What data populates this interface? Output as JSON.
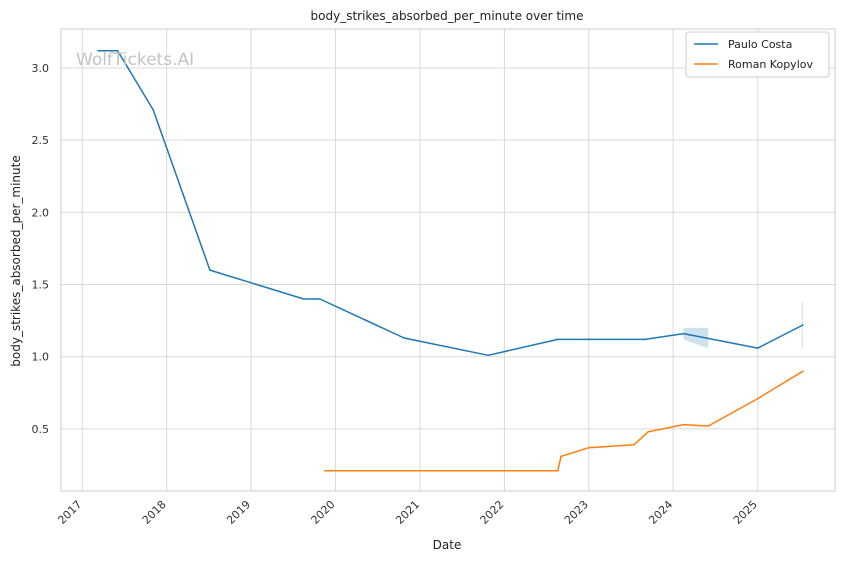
{
  "chart_data": {
    "type": "line",
    "title": "body_strikes_absorbed_per_minute over time",
    "xlabel": "Date",
    "ylabel": "body_strikes_absorbed_per_minute",
    "watermark": "WolfTickets.AI",
    "x_ticks": [
      "2017",
      "2018",
      "2019",
      "2020",
      "2021",
      "2022",
      "2023",
      "2024",
      "2025"
    ],
    "y_ticks": [
      "0.5",
      "1.0",
      "1.5",
      "2.0",
      "2.5",
      "3.0"
    ],
    "xlim": [
      "2016-10-01",
      "2025-12-01"
    ],
    "ylim": [
      0.07,
      3.27
    ],
    "grid": true,
    "legend_position": "top-right",
    "series": [
      {
        "name": "Paulo Costa",
        "color": "#1f77b4",
        "points": [
          [
            "2017-03-11",
            3.12
          ],
          [
            "2017-06-03",
            3.12
          ],
          [
            "2017-11-04",
            2.71
          ],
          [
            "2018-07-07",
            1.6
          ],
          [
            "2019-08-17",
            1.4
          ],
          [
            "2019-10-26",
            1.4
          ],
          [
            "2020-10-24",
            1.13
          ],
          [
            "2021-10-23",
            1.01
          ],
          [
            "2022-08-20",
            1.12
          ],
          [
            "2023-01-01",
            1.12
          ],
          [
            "2023-09-01",
            1.12
          ],
          [
            "2024-02-15",
            1.16
          ],
          [
            "2025-01-01",
            1.06
          ],
          [
            "2025-07-15",
            1.22
          ]
        ],
        "bands": [
          {
            "x": [
              "2024-02-15",
              "2024-06-01"
            ],
            "lower": [
              1.12,
              1.06
            ],
            "upper": [
              1.2,
              1.2
            ]
          },
          {
            "x": [
              "2025-07-10",
              "2025-07-15"
            ],
            "lower": [
              1.06,
              1.06
            ],
            "upper": [
              1.38,
              1.38
            ]
          }
        ]
      },
      {
        "name": "Roman Kopylov",
        "color": "#ff7f0e",
        "points": [
          [
            "2019-11-16",
            0.21
          ],
          [
            "2022-08-20",
            0.21
          ],
          [
            "2022-09-03",
            0.31
          ],
          [
            "2023-01-01",
            0.37
          ],
          [
            "2023-07-15",
            0.39
          ],
          [
            "2023-09-15",
            0.48
          ],
          [
            "2024-02-15",
            0.53
          ],
          [
            "2024-06-01",
            0.52
          ],
          [
            "2025-01-01",
            0.71
          ],
          [
            "2025-07-15",
            0.9
          ]
        ]
      }
    ]
  }
}
